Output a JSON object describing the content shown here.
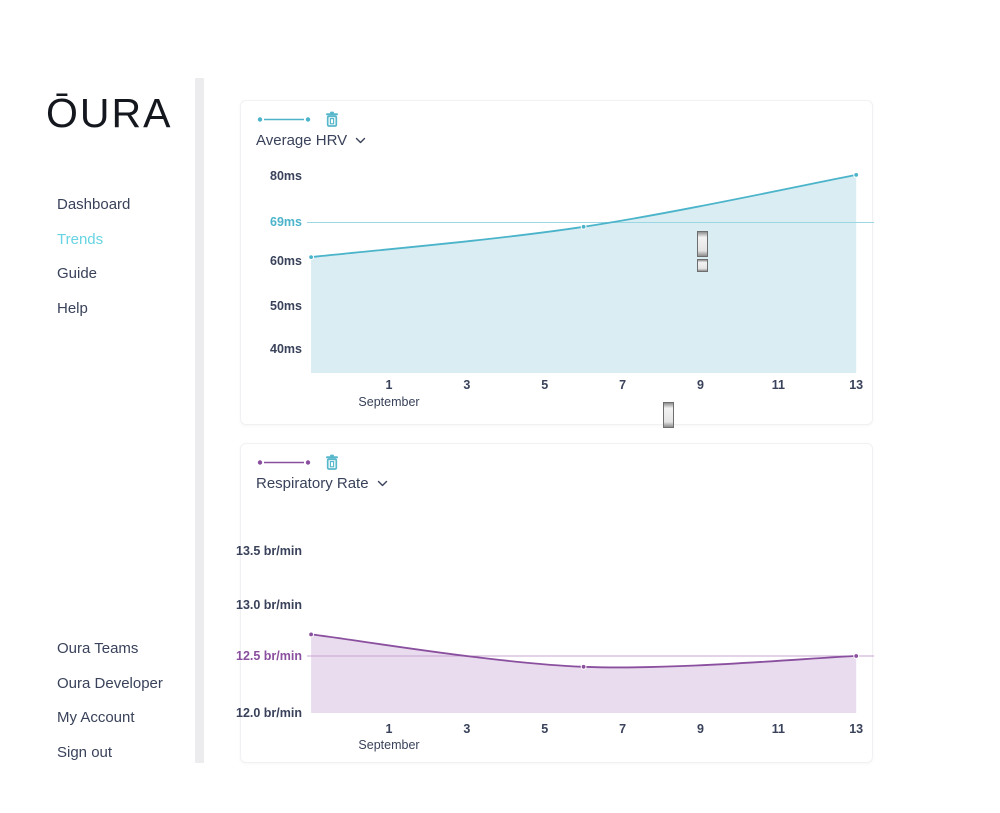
{
  "brand": {
    "logo_text": "ŌURA"
  },
  "sidebar": {
    "items": [
      {
        "label": "Dashboard",
        "active": false
      },
      {
        "label": "Trends",
        "active": true
      },
      {
        "label": "Guide",
        "active": false
      },
      {
        "label": "Help",
        "active": false
      }
    ],
    "footer_items": [
      {
        "label": "Oura Teams"
      },
      {
        "label": "Oura Developer"
      },
      {
        "label": "My Account"
      },
      {
        "label": "Sign out"
      }
    ]
  },
  "colors": {
    "nav_text": "#39425a",
    "active_nav": "#67d4e3",
    "trash_icon": "#57b7cb",
    "hrv_line": "#4bb4ca",
    "hrv_fill": "#d9edf2",
    "hrv_ref": "#9ad7e2",
    "resp_line": "#8a4f9e",
    "resp_fill": "#e9dcee",
    "resp_ref": "#c7a6d2"
  },
  "chart_data": [
    {
      "type": "area",
      "title": "Average HRV",
      "unit": "ms",
      "x": [
        "Aug 30",
        "Sep 6",
        "Sep 13"
      ],
      "day_offsets": [
        -2,
        5,
        12
      ],
      "values": [
        61,
        68,
        80
      ],
      "average_value": 69,
      "average_label": "69ms",
      "yticks": [
        "80ms",
        "69ms",
        "60ms",
        "50ms",
        "40ms"
      ],
      "ytick_accent_index": 1,
      "xticks": [
        "1",
        "3",
        "5",
        "7",
        "9",
        "11",
        "13"
      ],
      "xlabel": "September",
      "ylim": [
        40,
        80
      ],
      "grid": false,
      "line_color": "#4bb4ca",
      "fill_color": "#d9edf2",
      "ref_color": "#9ad7e2"
    },
    {
      "type": "area",
      "title": "Respiratory Rate",
      "unit": "br/min",
      "x": [
        "Aug 30",
        "Sep 6",
        "Sep 13"
      ],
      "day_offsets": [
        -2,
        5,
        12
      ],
      "values": [
        12.7,
        12.4,
        12.5
      ],
      "average_value": 12.5,
      "average_label": "12.5 br/min",
      "yticks": [
        "13.5 br/min",
        "13.0 br/min",
        "12.5 br/min",
        "12.0 br/min"
      ],
      "ytick_accent_index": 2,
      "xticks": [
        "1",
        "3",
        "5",
        "7",
        "9",
        "11",
        "13"
      ],
      "xlabel": "September",
      "ylim": [
        12.0,
        13.5
      ],
      "grid": false,
      "line_color": "#8a4f9e",
      "fill_color": "#e9dcee",
      "ref_color": "#c7a6d2"
    }
  ]
}
